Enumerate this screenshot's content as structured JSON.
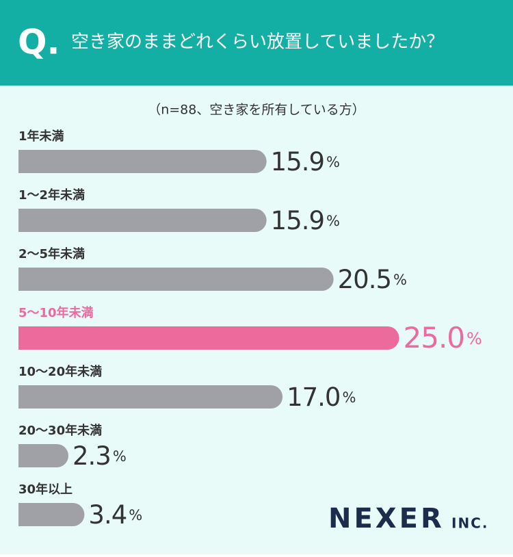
{
  "header": {
    "mark": "Q.",
    "title": "空き家のままどれくらい放置していましたか？"
  },
  "chart_data": {
    "type": "hbar",
    "subtitle": "（n=88、空き家を所有している方）",
    "categories": [
      "1年未満",
      "1〜2年未満",
      "2〜5年未満",
      "5〜10年未満",
      "10〜20年未満",
      "20〜30年未満",
      "30年以上"
    ],
    "values": [
      15.9,
      15.9,
      20.5,
      25.0,
      17.0,
      2.3,
      3.4
    ],
    "value_labels": [
      "15.9",
      "15.9",
      "20.5",
      "25.0",
      "17.0",
      "2.3",
      "3.4"
    ],
    "unit": "%",
    "color": "#a0a1a6",
    "highlight_color": "#ec6a9c",
    "highlight_index": 3
  },
  "logo": {
    "name": "NEXER",
    "suffix": "INC."
  }
}
